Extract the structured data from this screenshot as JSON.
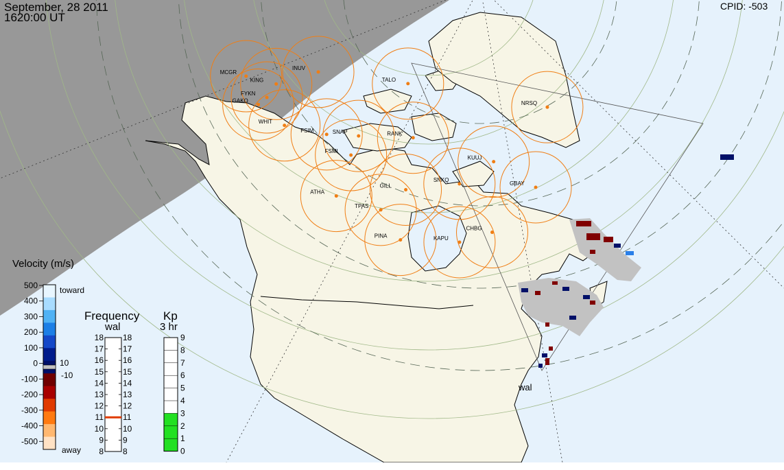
{
  "header": {
    "date": "September, 28 2011",
    "time": "1620:00 UT",
    "cpid": "CPID:  -503"
  },
  "radar_label": "wal",
  "stations": [
    {
      "code": "KING",
      "lon": -145.5,
      "lat": 64.5
    },
    {
      "code": "MCGR",
      "lon": -155.6,
      "lat": 62.95
    },
    {
      "code": "FYKN",
      "lon": -145.2,
      "lat": 62.5
    },
    {
      "code": "INUV",
      "lon": -134.0,
      "lat": 68.4
    },
    {
      "code": "GAKO",
      "lon": -146.0,
      "lat": 61.2
    },
    {
      "code": "WHIT",
      "lon": -135.1,
      "lat": 60.7
    },
    {
      "code": "FSIM",
      "lon": -121.3,
      "lat": 61.7
    },
    {
      "code": "SNAP",
      "lon": -110.8,
      "lat": 62.5
    },
    {
      "code": "FSMI",
      "lon": -111.9,
      "lat": 60.0
    },
    {
      "code": "TALO",
      "lon": -93.5,
      "lat": 69.5
    },
    {
      "code": "RANK",
      "lon": -92.1,
      "lat": 62.8
    },
    {
      "code": "KUUJ",
      "lon": -68.4,
      "lat": 58.1
    },
    {
      "code": "GBAY",
      "lon": -60.5,
      "lat": 53.3
    },
    {
      "code": "SNKQ",
      "lon": -79.6,
      "lat": 56.5
    },
    {
      "code": "GILL",
      "lon": -94.7,
      "lat": 56.4
    },
    {
      "code": "ATHA",
      "lon": -113.3,
      "lat": 54.7
    },
    {
      "code": "TPAS",
      "lon": -101.2,
      "lat": 53.8
    },
    {
      "code": "PINA",
      "lon": -96.0,
      "lat": 50.2
    },
    {
      "code": "KAPU",
      "lon": -82.3,
      "lat": 49.4
    },
    {
      "code": "CHBG",
      "lon": -74.4,
      "lat": 49.8
    },
    {
      "code": "NRSQ",
      "lon": -45.5,
      "lat": 61.2
    }
  ],
  "velocity_scale": {
    "title": "Velocity (m/s)",
    "ticks": [
      "500",
      "400",
      "300",
      "200",
      "100",
      "0",
      "-100",
      "-200",
      "-300",
      "-400",
      "-500"
    ],
    "toward_label": "toward",
    "away_label": "away",
    "gs_upper": "10",
    "gs_lower": "-10",
    "colors": [
      "#e8f6ff",
      "#a8dcff",
      "#4fb2f5",
      "#1c7fe6",
      "#1448c8",
      "#001c8c",
      "#001068",
      "#700000",
      "#a80000",
      "#e03a00",
      "#ff7a10",
      "#ffb870",
      "#ffe2c4"
    ]
  },
  "frequency_scale": {
    "title": "Frequency",
    "subtitle": "wal",
    "ticks": [
      "18",
      "17",
      "16",
      "15",
      "14",
      "13",
      "12",
      "11",
      "10",
      "9",
      "8"
    ],
    "marker": 11
  },
  "kp_scale": {
    "title": "Kp",
    "subtitle": "3 hr",
    "ticks": [
      "9",
      "8",
      "7",
      "6",
      "5",
      "4",
      "3",
      "2",
      "1",
      "0"
    ],
    "value": 3,
    "fill_color": "#22e022"
  },
  "colors": {
    "land": "#f7f5e6",
    "ocean": "#e6f2fc",
    "night": "#989898",
    "fov_circle": "#f07e14",
    "ground_scatter": "#c2c2c2",
    "grid": "#a0b888"
  }
}
